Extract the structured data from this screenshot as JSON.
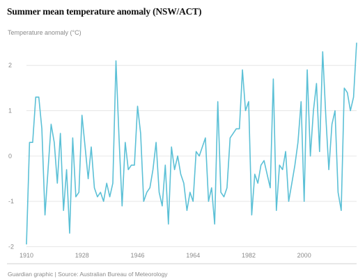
{
  "chart_data": {
    "type": "line",
    "title": "Summer mean temperature anomaly (NSW/ACT)",
    "ylabel": "Temperature anomaly (°C)",
    "xlabel": "",
    "source": "Guardian graphic | Source: Australian Bureau of Meteorology",
    "xlim": [
      1910,
      2017
    ],
    "ylim": [
      -2.1,
      2.6
    ],
    "x_ticks": [
      1910,
      1928,
      1946,
      1964,
      1982,
      2000
    ],
    "y_ticks": [
      -2,
      -1,
      0,
      1,
      2
    ],
    "grid": "horizontal",
    "line_color": "#5bc0d6",
    "series": [
      {
        "x": [
          1910,
          1911,
          1912,
          1913,
          1914,
          1915,
          1916,
          1917,
          1918,
          1919,
          1920,
          1921,
          1922,
          1923,
          1924,
          1925,
          1926,
          1927,
          1928,
          1929,
          1930,
          1931,
          1932,
          1933,
          1934,
          1935,
          1936,
          1937,
          1938,
          1939,
          1940,
          1941,
          1942,
          1943,
          1944,
          1945,
          1946,
          1947,
          1948,
          1949,
          1950,
          1951,
          1952,
          1953,
          1954,
          1955,
          1956,
          1957,
          1958,
          1959,
          1960,
          1961,
          1962,
          1963,
          1964,
          1965,
          1966,
          1967,
          1968,
          1969,
          1970,
          1971,
          1972,
          1973,
          1974,
          1975,
          1976,
          1977,
          1978,
          1979,
          1980,
          1981,
          1982,
          1983,
          1984,
          1985,
          1986,
          1987,
          1988,
          1989,
          1990,
          1991,
          1992,
          1993,
          1994,
          1995,
          1996,
          1997,
          1998,
          1999,
          2000,
          2001,
          2002,
          2003,
          2004,
          2005,
          2006,
          2007,
          2008,
          2009,
          2010,
          2011,
          2012,
          2013,
          2014,
          2015,
          2016,
          2017
        ],
        "values": [
          -1.95,
          0.3,
          0.3,
          1.3,
          1.3,
          0.6,
          -1.3,
          -0.3,
          0.7,
          0.3,
          -0.6,
          0.5,
          -1.2,
          -0.3,
          -1.7,
          0.4,
          -0.9,
          -0.8,
          0.9,
          0.2,
          -0.5,
          0.2,
          -0.7,
          -0.9,
          -0.8,
          -1.0,
          -0.6,
          -0.9,
          -0.6,
          2.1,
          0.4,
          -1.1,
          0.3,
          -0.3,
          -0.2,
          -0.2,
          1.1,
          0.5,
          -1.0,
          -0.8,
          -0.7,
          -0.3,
          0.3,
          -0.8,
          -1.1,
          -0.2,
          -1.5,
          0.2,
          -0.3,
          0.0,
          -0.4,
          -0.6,
          -1.2,
          -0.8,
          -1.0,
          0.1,
          0.0,
          0.2,
          0.4,
          -1.0,
          -0.7,
          -1.5,
          1.2,
          -0.8,
          -0.9,
          -0.7,
          0.4,
          0.5,
          0.6,
          0.6,
          1.9,
          1.0,
          1.2,
          -1.3,
          -0.4,
          -0.6,
          -0.2,
          -0.1,
          -0.4,
          -0.7,
          1.7,
          -1.2,
          -0.2,
          -0.3,
          0.1,
          -1.0,
          -0.6,
          -0.2,
          0.3,
          1.2,
          -1.0,
          1.9,
          0.0,
          1.0,
          1.6,
          0.1,
          2.3,
          0.9,
          -0.3,
          0.7,
          1.0,
          -0.8,
          -1.2,
          1.5,
          1.4,
          1.0,
          1.3,
          2.5
        ]
      }
    ]
  }
}
